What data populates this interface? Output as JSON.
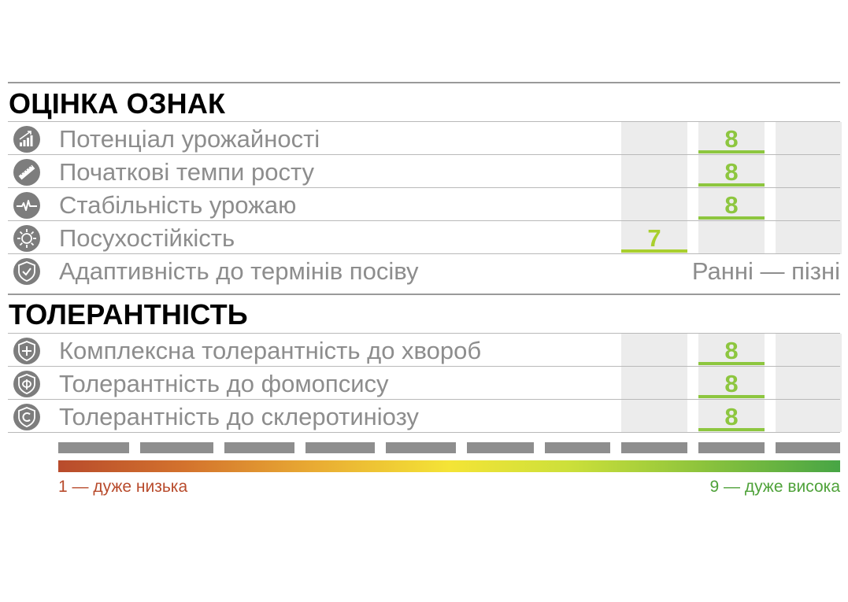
{
  "colors": {
    "score": "#8dc63f",
    "score_alt": "#a9cf2e",
    "low": "#b84b2c",
    "high": "#4fa23a"
  },
  "sections": {
    "traits_title": "ОЦІНКА ОЗНАК",
    "tolerance_title": "ТОЛЕРАНТНІСТЬ"
  },
  "traits": [
    {
      "icon": "yield-chart-icon",
      "label": "Потенціал урожайності",
      "score": "8"
    },
    {
      "icon": "ruler-icon",
      "label": "Початкові темпи росту",
      "score": "8"
    },
    {
      "icon": "pulse-icon",
      "label": "Стабільність урожаю",
      "score": "8"
    },
    {
      "icon": "sun-icon",
      "label": "Посухостійкість",
      "score": "7"
    },
    {
      "icon": "shield-check-icon",
      "label": "Адаптивність до термінів посіву",
      "value": "Ранні — пізні"
    }
  ],
  "tolerance": [
    {
      "icon": "shield-plus-icon",
      "label": "Комплексна толерантність до хвороб",
      "score": "8"
    },
    {
      "icon": "shield-f-icon",
      "label": "Толерантність до фомопсису",
      "score": "8"
    },
    {
      "icon": "shield-c-icon",
      "label": "Толерантність до склеротиніозу",
      "score": "8"
    }
  ],
  "scale": {
    "min_label": "1 — дуже низька",
    "max_label": "9 — дуже висока",
    "segments": 10
  }
}
